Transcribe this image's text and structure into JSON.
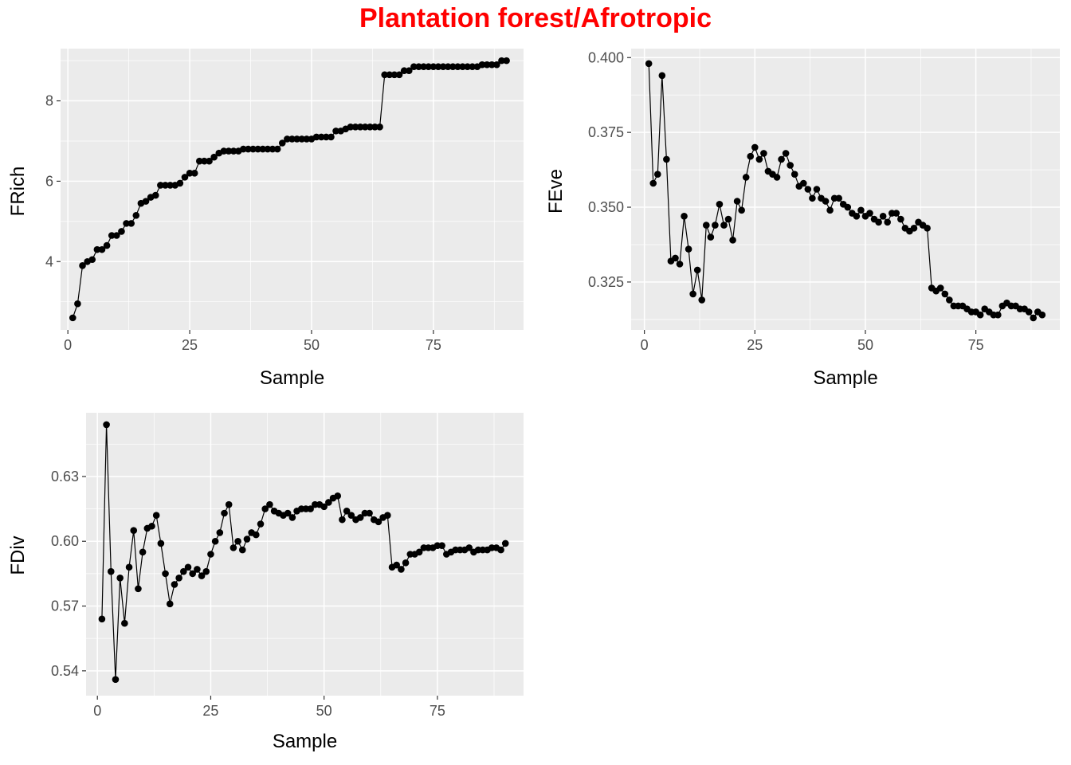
{
  "title": "Plantation forest/Afrotropic",
  "colors": {
    "title": "#ff0000",
    "panel": "#ebebeb",
    "grid": "#ffffff",
    "series": "#000000"
  },
  "chart_data": [
    {
      "type": "line",
      "id": "frich",
      "xlabel": "Sample",
      "ylabel": "FRich",
      "xlim": [
        -1.5,
        93.5
      ],
      "ylim": [
        2.3,
        9.3
      ],
      "xticks": [
        0,
        25,
        50,
        75
      ],
      "xtick_labels": [
        "0",
        "25",
        "50",
        "75"
      ],
      "yticks": [
        4,
        6,
        8
      ],
      "ytick_labels": [
        "4",
        "6",
        "8"
      ],
      "x": [
        1,
        2,
        3,
        4,
        5,
        6,
        7,
        8,
        9,
        10,
        11,
        12,
        13,
        14,
        15,
        16,
        17,
        18,
        19,
        20,
        21,
        22,
        23,
        24,
        25,
        26,
        27,
        28,
        29,
        30,
        31,
        32,
        33,
        34,
        35,
        36,
        37,
        38,
        39,
        40,
        41,
        42,
        43,
        44,
        45,
        46,
        47,
        48,
        49,
        50,
        51,
        52,
        53,
        54,
        55,
        56,
        57,
        58,
        59,
        60,
        61,
        62,
        63,
        64,
        65,
        66,
        67,
        68,
        69,
        70,
        71,
        72,
        73,
        74,
        75,
        76,
        77,
        78,
        79,
        80,
        81,
        82,
        83,
        84,
        85,
        86,
        87,
        88,
        89,
        90
      ],
      "y": [
        2.6,
        2.95,
        3.9,
        4.0,
        4.05,
        4.3,
        4.3,
        4.4,
        4.65,
        4.65,
        4.75,
        4.95,
        4.95,
        5.15,
        5.45,
        5.5,
        5.6,
        5.65,
        5.9,
        5.9,
        5.9,
        5.9,
        5.95,
        6.1,
        6.2,
        6.2,
        6.5,
        6.5,
        6.5,
        6.6,
        6.7,
        6.75,
        6.75,
        6.75,
        6.75,
        6.8,
        6.8,
        6.8,
        6.8,
        6.8,
        6.8,
        6.8,
        6.8,
        6.95,
        7.05,
        7.05,
        7.05,
        7.05,
        7.05,
        7.05,
        7.1,
        7.1,
        7.1,
        7.1,
        7.25,
        7.25,
        7.3,
        7.35,
        7.35,
        7.35,
        7.35,
        7.35,
        7.35,
        7.35,
        8.65,
        8.65,
        8.65,
        8.65,
        8.75,
        8.75,
        8.85,
        8.85,
        8.85,
        8.85,
        8.85,
        8.85,
        8.85,
        8.85,
        8.85,
        8.85,
        8.85,
        8.85,
        8.85,
        8.85,
        8.9,
        8.9,
        8.9,
        8.9,
        9.0,
        9.0
      ]
    },
    {
      "type": "line",
      "id": "feve",
      "xlabel": "Sample",
      "ylabel": "FEve",
      "xlim": [
        -3,
        94
      ],
      "ylim": [
        0.309,
        0.403
      ],
      "xticks": [
        0,
        25,
        50,
        75
      ],
      "xtick_labels": [
        "0",
        "25",
        "50",
        "75"
      ],
      "yticks": [
        0.325,
        0.35,
        0.375,
        0.4
      ],
      "ytick_labels": [
        "0.325",
        "0.350",
        "0.375",
        "0.400"
      ],
      "x": [
        1,
        2,
        3,
        4,
        5,
        6,
        7,
        8,
        9,
        10,
        11,
        12,
        13,
        14,
        15,
        16,
        17,
        18,
        19,
        20,
        21,
        22,
        23,
        24,
        25,
        26,
        27,
        28,
        29,
        30,
        31,
        32,
        33,
        34,
        35,
        36,
        37,
        38,
        39,
        40,
        41,
        42,
        43,
        44,
        45,
        46,
        47,
        48,
        49,
        50,
        51,
        52,
        53,
        54,
        55,
        56,
        57,
        58,
        59,
        60,
        61,
        62,
        63,
        64,
        65,
        66,
        67,
        68,
        69,
        70,
        71,
        72,
        73,
        74,
        75,
        76,
        77,
        78,
        79,
        80,
        81,
        82,
        83,
        84,
        85,
        86,
        87,
        88,
        89,
        90
      ],
      "y": [
        0.398,
        0.358,
        0.361,
        0.394,
        0.366,
        0.332,
        0.333,
        0.331,
        0.347,
        0.336,
        0.321,
        0.329,
        0.319,
        0.344,
        0.34,
        0.344,
        0.351,
        0.344,
        0.346,
        0.339,
        0.352,
        0.349,
        0.36,
        0.367,
        0.37,
        0.366,
        0.368,
        0.362,
        0.361,
        0.36,
        0.366,
        0.368,
        0.364,
        0.361,
        0.357,
        0.358,
        0.356,
        0.353,
        0.356,
        0.353,
        0.352,
        0.349,
        0.353,
        0.353,
        0.351,
        0.35,
        0.348,
        0.347,
        0.349,
        0.347,
        0.348,
        0.346,
        0.345,
        0.347,
        0.345,
        0.348,
        0.348,
        0.346,
        0.343,
        0.342,
        0.343,
        0.345,
        0.344,
        0.343,
        0.323,
        0.322,
        0.323,
        0.321,
        0.319,
        0.317,
        0.317,
        0.317,
        0.316,
        0.315,
        0.315,
        0.314,
        0.316,
        0.315,
        0.314,
        0.314,
        0.317,
        0.318,
        0.317,
        0.317,
        0.316,
        0.316,
        0.315,
        0.313,
        0.315,
        0.314
      ]
    },
    {
      "type": "line",
      "id": "fdiv",
      "xlabel": "Sample",
      "ylabel": "FDiv",
      "xlim": [
        -2.5,
        94
      ],
      "ylin_note": "",
      "ylim": [
        0.5285,
        0.6595
      ],
      "xticks": [
        0,
        25,
        50,
        75
      ],
      "xtick_labels": [
        "0",
        "25",
        "50",
        "75"
      ],
      "yticks": [
        0.54,
        0.57,
        0.6,
        0.63
      ],
      "ytick_labels": [
        "0.54",
        "0.57",
        "0.60",
        "0.63"
      ],
      "x": [
        1,
        2,
        3,
        4,
        5,
        6,
        7,
        8,
        9,
        10,
        11,
        12,
        13,
        14,
        15,
        16,
        17,
        18,
        19,
        20,
        21,
        22,
        23,
        24,
        25,
        26,
        27,
        28,
        29,
        30,
        31,
        32,
        33,
        34,
        35,
        36,
        37,
        38,
        39,
        40,
        41,
        42,
        43,
        44,
        45,
        46,
        47,
        48,
        49,
        50,
        51,
        52,
        53,
        54,
        55,
        56,
        57,
        58,
        59,
        60,
        61,
        62,
        63,
        64,
        65,
        66,
        67,
        68,
        69,
        70,
        71,
        72,
        73,
        74,
        75,
        76,
        77,
        78,
        79,
        80,
        81,
        82,
        83,
        84,
        85,
        86,
        87,
        88,
        89,
        90
      ],
      "y": [
        0.564,
        0.654,
        0.586,
        0.536,
        0.583,
        0.562,
        0.588,
        0.605,
        0.578,
        0.595,
        0.606,
        0.607,
        0.612,
        0.599,
        0.585,
        0.571,
        0.58,
        0.583,
        0.586,
        0.588,
        0.585,
        0.587,
        0.584,
        0.586,
        0.594,
        0.6,
        0.604,
        0.613,
        0.617,
        0.597,
        0.6,
        0.596,
        0.601,
        0.604,
        0.603,
        0.608,
        0.615,
        0.617,
        0.614,
        0.613,
        0.612,
        0.613,
        0.611,
        0.614,
        0.615,
        0.615,
        0.615,
        0.617,
        0.617,
        0.616,
        0.618,
        0.62,
        0.621,
        0.61,
        0.614,
        0.612,
        0.61,
        0.611,
        0.613,
        0.613,
        0.61,
        0.609,
        0.611,
        0.612,
        0.588,
        0.589,
        0.587,
        0.59,
        0.594,
        0.594,
        0.595,
        0.597,
        0.597,
        0.597,
        0.598,
        0.598,
        0.594,
        0.595,
        0.596,
        0.596,
        0.596,
        0.597,
        0.595,
        0.596,
        0.596,
        0.596,
        0.597,
        0.597,
        0.596,
        0.599
      ]
    }
  ]
}
